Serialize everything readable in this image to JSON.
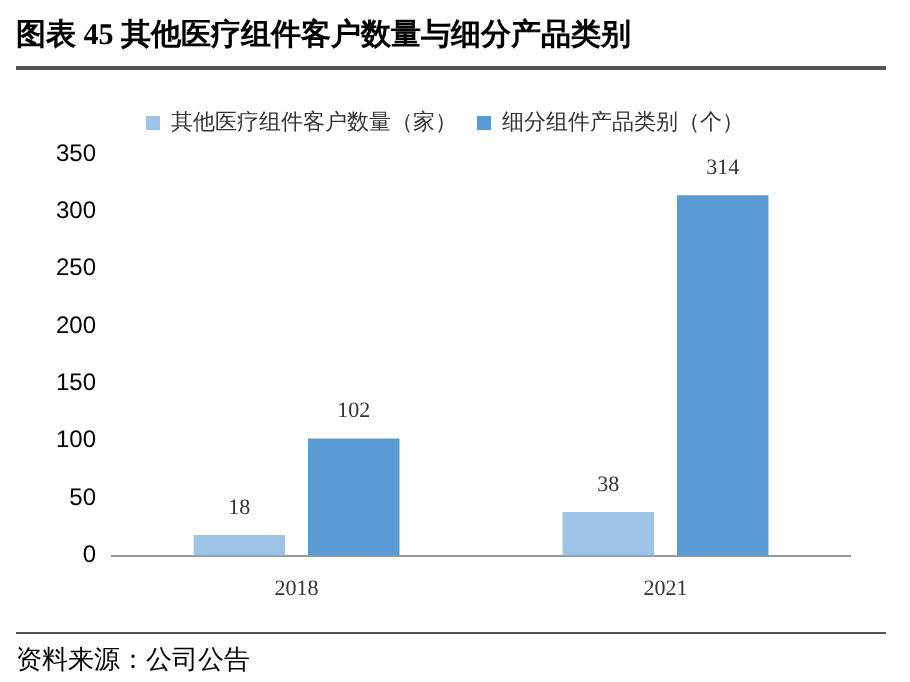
{
  "chart_data": {
    "type": "bar",
    "title": "图表 45 其他医疗组件客户数量与细分产品类别",
    "categories": [
      "2018",
      "2021"
    ],
    "series": [
      {
        "name": "其他医疗组件客户数量（家）",
        "color": "#9dc3e6",
        "values": [
          18,
          38
        ]
      },
      {
        "name": "细分组件产品类别（个）",
        "color": "#5b9bd5",
        "values": [
          102,
          314
        ]
      }
    ],
    "ylim": [
      0,
      350
    ],
    "yticks": [
      0,
      50,
      100,
      150,
      200,
      250,
      300,
      350
    ],
    "grid": false,
    "legend": "top",
    "data_labels": true,
    "annotations": [
      "资料来源：公司公告"
    ]
  }
}
